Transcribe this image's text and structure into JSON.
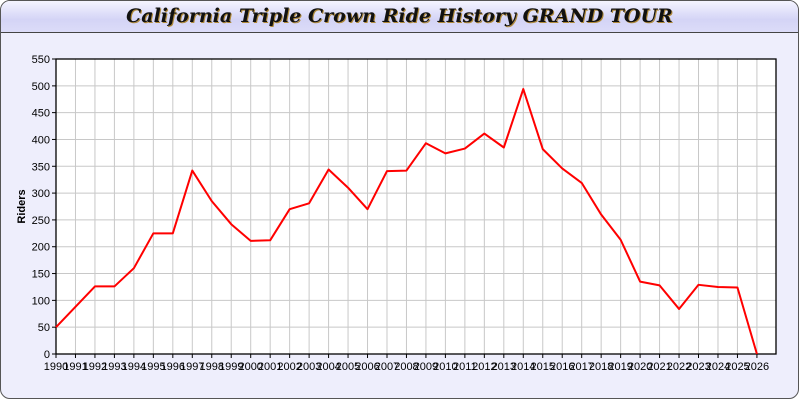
{
  "chart_data": {
    "type": "line",
    "title": "California Triple Crown Ride History GRAND TOUR",
    "xlabel": "",
    "ylabel": "Riders",
    "ylim": [
      0,
      550
    ],
    "yticks": [
      0,
      50,
      100,
      150,
      200,
      250,
      300,
      350,
      400,
      450,
      500,
      550
    ],
    "grid": true,
    "line_color": "#ff0000",
    "x": [
      "1990",
      "1991",
      "1992",
      "1993",
      "1994",
      "1995",
      "1996",
      "1997",
      "1998",
      "1999",
      "2000",
      "2001",
      "2002",
      "2003",
      "2004",
      "2005",
      "2006",
      "2007",
      "2008",
      "2009",
      "2010",
      "2011",
      "2012",
      "2013",
      "2014",
      "2015",
      "2016",
      "2017",
      "2018",
      "2019",
      "2020",
      "2021",
      "2022",
      "2023",
      "2024",
      "2025",
      "2026"
    ],
    "values": [
      50,
      88,
      126,
      126,
      160,
      225,
      225,
      342,
      285,
      242,
      211,
      212,
      270,
      281,
      344,
      310,
      270,
      341,
      342,
      393,
      374,
      383,
      411,
      385,
      494,
      382,
      346,
      319,
      260,
      213,
      135,
      128,
      84,
      129,
      125,
      124,
      0
    ]
  }
}
